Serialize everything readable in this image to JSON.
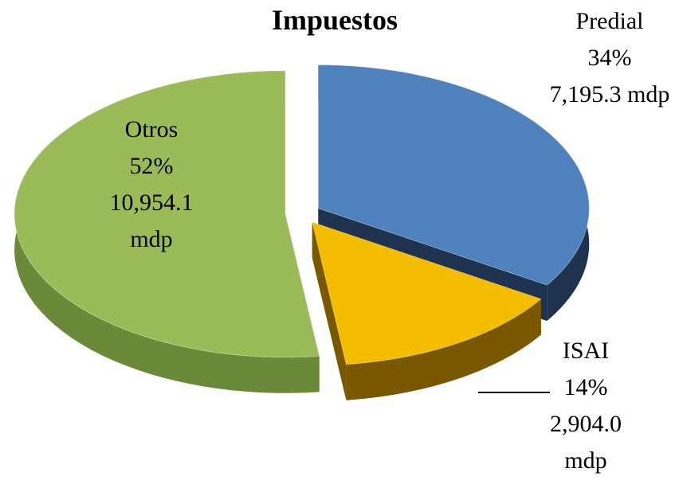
{
  "chart_data": {
    "type": "pie",
    "title": "Impuestos",
    "categories": [
      "Predial",
      "ISAI",
      "Otros"
    ],
    "values": [
      34,
      14,
      52
    ],
    "value_labels": [
      "34%",
      "14%",
      "52%"
    ],
    "amounts": [
      7195.3,
      2904.0,
      10954.1
    ],
    "amount_labels": [
      "7,195.3 mdp",
      "2,904.0 mdp",
      "10,954.1 mdp"
    ],
    "colors": [
      "#4f81bd",
      "#f5bd00",
      "#9bbb59"
    ],
    "side_colors": [
      "#1f3350",
      "#7a5800",
      "#6a8a3a"
    ]
  }
}
